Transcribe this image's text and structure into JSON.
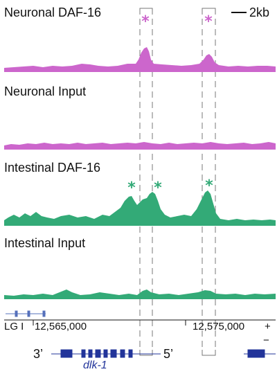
{
  "tracks": [
    {
      "label": "Neuronal DAF-16",
      "color": "#cc66cc",
      "stars": 2
    },
    {
      "label": "Neuronal Input",
      "color": "#cc66cc",
      "stars": 0
    },
    {
      "label": "Intestinal DAF-16",
      "color": "#33aa77",
      "stars": 3
    },
    {
      "label": "Intestinal Input",
      "color": "#33aa77",
      "stars": 0
    }
  ],
  "scale_bar": {
    "label": "2kb"
  },
  "star_symbol": "*",
  "axis": {
    "chromosome": "LG I",
    "coord_left": "12,565,000",
    "coord_right": "12,575,000",
    "strand_plus": "+",
    "strand_minus": "−"
  },
  "gene": {
    "name": "dlk-1",
    "end_3": "3’",
    "end_5": "5’",
    "color": "#22349a"
  },
  "colors": {
    "neuronal": "#cc66cc",
    "intestinal": "#33aa77",
    "gene": "#22349a",
    "dash": "#777777"
  }
}
